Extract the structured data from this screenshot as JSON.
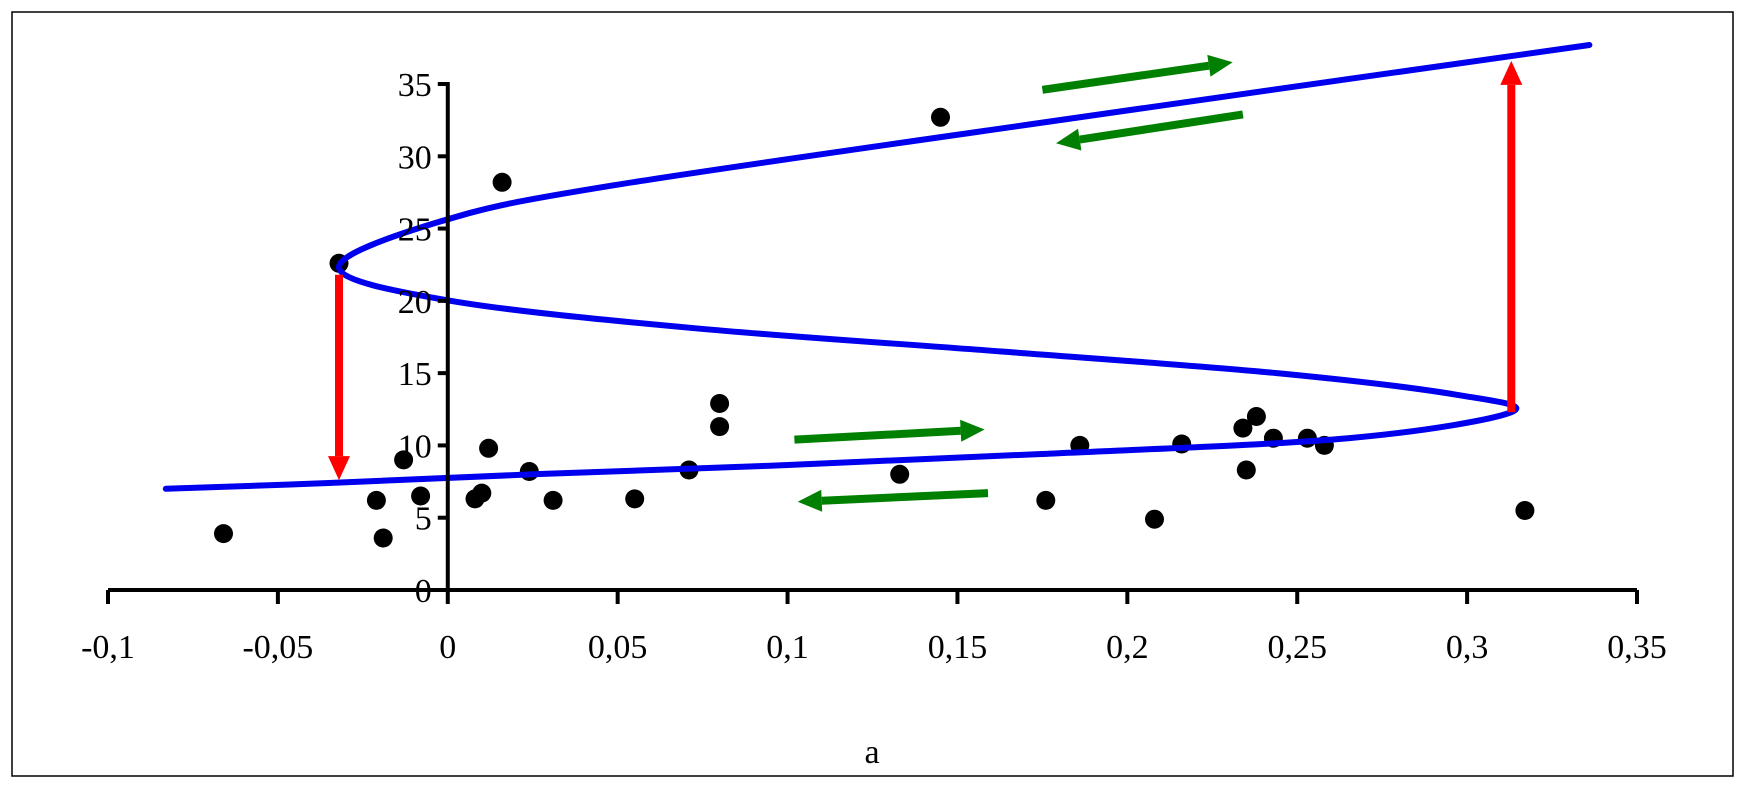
{
  "chart_data": {
    "type": "scatter",
    "title": "",
    "xlabel": "a",
    "ylabel": "",
    "xlim": [
      -0.1,
      0.35
    ],
    "ylim": [
      0,
      35
    ],
    "x_ticks": [
      -0.1,
      -0.05,
      0,
      0.05,
      0.1,
      0.15,
      0.2,
      0.25,
      0.3,
      0.35
    ],
    "x_tick_labels": [
      "-0,1",
      "-0,05",
      "0",
      "0,05",
      "0,1",
      "0,15",
      "0,2",
      "0,25",
      "0,3",
      "0,35"
    ],
    "y_ticks": [
      0,
      5,
      10,
      15,
      20,
      25,
      30,
      35
    ],
    "y_tick_labels": [
      "0",
      "5",
      "10",
      "15",
      "20",
      "25",
      "30",
      "35"
    ],
    "grid": false,
    "legend": "none",
    "series": [
      {
        "kind": "points",
        "color": "#000000",
        "x": [
          -0.066,
          -0.021,
          -0.019,
          -0.013,
          -0.008,
          0.008,
          0.01,
          0.012,
          0.016,
          0.024,
          0.031,
          0.055,
          0.071,
          0.08,
          0.08,
          0.133,
          0.145,
          0.176,
          0.186,
          0.208,
          0.216,
          0.234,
          0.235,
          0.238,
          0.243,
          0.253,
          0.258,
          0.317,
          -0.032
        ],
        "y": [
          3.9,
          6.2,
          3.6,
          9.0,
          6.5,
          6.3,
          6.7,
          9.8,
          28.2,
          8.2,
          6.2,
          6.3,
          8.3,
          12.9,
          11.3,
          8.0,
          32.7,
          6.2,
          10.0,
          4.9,
          10.1,
          11.2,
          8.3,
          12.0,
          10.5,
          10.5,
          10.0,
          5.5,
          22.6
        ]
      },
      {
        "kind": "curve",
        "color": "#0000ee",
        "x": [
          0.336,
          0.195,
          0.049,
          -0.002,
          -0.032,
          0.001,
          0.073,
          0.163,
          0.244,
          0.297,
          0.313,
          0.265,
          0.174,
          0.095,
          0.025,
          -0.035,
          -0.083
        ],
        "y": [
          37.7,
          33.0,
          28.0,
          25.5,
          22.3,
          20.0,
          18.1,
          16.5,
          15.0,
          13.5,
          12.3,
          10.5,
          9.4,
          8.6,
          8.0,
          7.4,
          7.0
        ]
      }
    ],
    "annotations": [
      {
        "kind": "arrow",
        "color": "#ff0000",
        "from": [
          -0.032,
          21.8
        ],
        "to": [
          -0.032,
          7.6
        ]
      },
      {
        "kind": "arrow",
        "color": "#ff0000",
        "from": [
          0.313,
          12.3
        ],
        "to": [
          0.313,
          36.6
        ]
      },
      {
        "kind": "arrow",
        "color": "#008000",
        "from": [
          0.175,
          34.6
        ],
        "to": [
          0.231,
          36.5
        ]
      },
      {
        "kind": "arrow",
        "color": "#008000",
        "from": [
          0.234,
          32.9
        ],
        "to": [
          0.179,
          30.9
        ]
      },
      {
        "kind": "arrow",
        "color": "#008000",
        "from": [
          0.102,
          10.4
        ],
        "to": [
          0.158,
          11.1
        ]
      },
      {
        "kind": "arrow",
        "color": "#008000",
        "from": [
          0.159,
          6.7
        ],
        "to": [
          0.103,
          6.1
        ]
      }
    ]
  }
}
